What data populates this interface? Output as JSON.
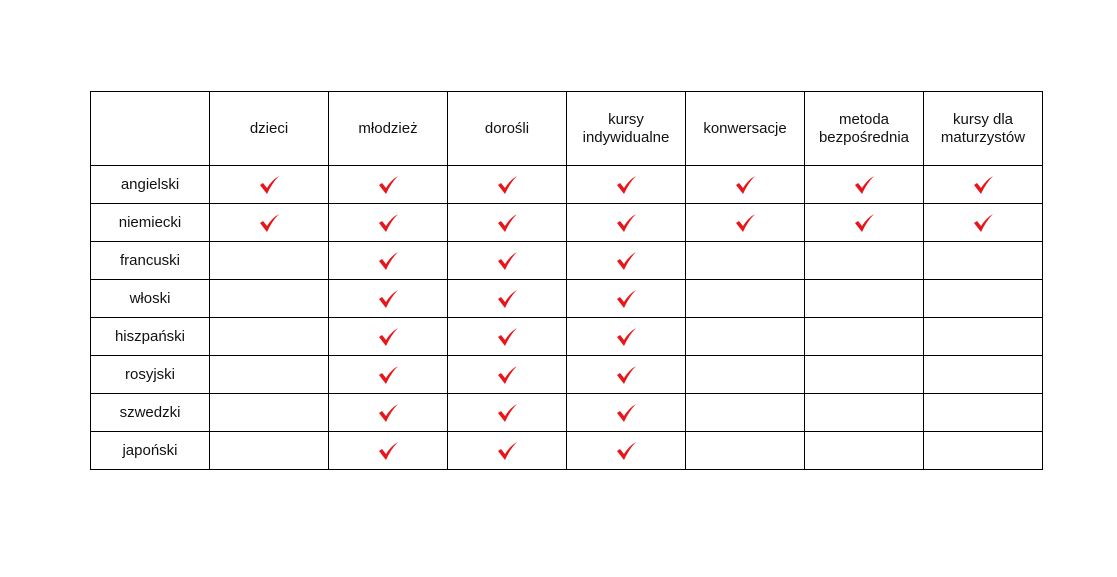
{
  "table": {
    "columns": [
      "dzieci",
      "młodzież",
      "dorośli",
      "kursy indywidualne",
      "konwersacje",
      "metoda bezpośrednia",
      "kursy dla maturzystów"
    ],
    "rows": [
      {
        "label": "angielski",
        "checks": [
          true,
          true,
          true,
          true,
          true,
          true,
          true
        ]
      },
      {
        "label": "niemiecki",
        "checks": [
          true,
          true,
          true,
          true,
          true,
          true,
          true
        ]
      },
      {
        "label": "francuski",
        "checks": [
          false,
          true,
          true,
          true,
          false,
          false,
          false
        ]
      },
      {
        "label": "włoski",
        "checks": [
          false,
          true,
          true,
          true,
          false,
          false,
          false
        ]
      },
      {
        "label": "hiszpański",
        "checks": [
          false,
          true,
          true,
          true,
          false,
          false,
          false
        ]
      },
      {
        "label": "rosyjski",
        "checks": [
          false,
          true,
          true,
          true,
          false,
          false,
          false
        ]
      },
      {
        "label": "szwedzki",
        "checks": [
          false,
          true,
          true,
          true,
          false,
          false,
          false
        ]
      },
      {
        "label": "japoński",
        "checks": [
          false,
          true,
          true,
          true,
          false,
          false,
          false
        ]
      }
    ]
  }
}
